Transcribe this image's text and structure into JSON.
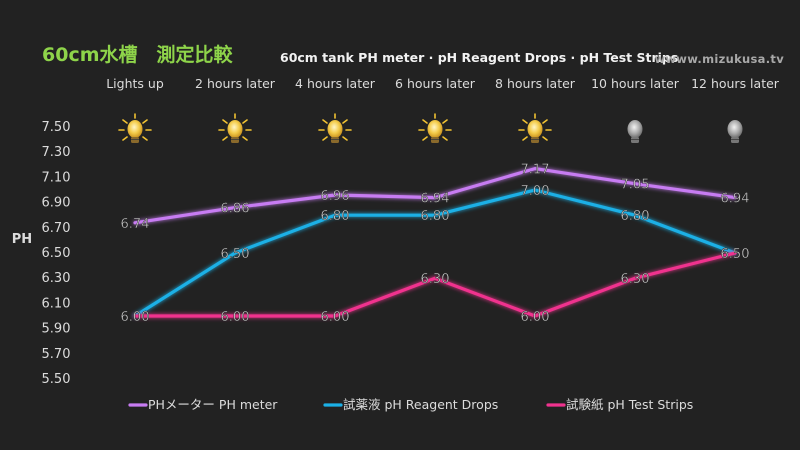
{
  "title": "60cm水槽　測定比較",
  "subtitle": "60cm tank PH meter · pH Reagent Drops · pH Test Strips",
  "website": "wwww.mizukusa.tv",
  "chart_data": {
    "type": "line",
    "categories": [
      "Lights up",
      "2 hours later",
      "4 hours later",
      "6 hours later",
      "8 hours later",
      "10 hours later",
      "12 hours later"
    ],
    "lights": [
      "on",
      "on",
      "on",
      "on",
      "on",
      "off",
      "off"
    ],
    "ylabel": "PH",
    "ylim": [
      5.5,
      7.5
    ],
    "yticks": [
      "7.50",
      "7.30",
      "7.10",
      "6.90",
      "6.70",
      "6.50",
      "6.30",
      "6.10",
      "5.90",
      "5.70",
      "5.50"
    ],
    "series": [
      {
        "name": "PHメーター PH meter",
        "color": "#c77cf2",
        "values": [
          6.74,
          6.86,
          6.96,
          6.94,
          7.17,
          7.05,
          6.94
        ],
        "labels": [
          "6.74",
          "6.86",
          "6.96",
          "6.94",
          "7.17",
          "7.05",
          "6.94"
        ]
      },
      {
        "name": "試薬液 pH Reagent Drops",
        "color": "#1bb0e6",
        "values": [
          6.0,
          6.5,
          6.8,
          6.8,
          7.0,
          6.8,
          6.5
        ],
        "labels": [
          "6.00",
          "6.50",
          "6.80",
          "6.80",
          "7.00",
          "6.80",
          "6.50"
        ]
      },
      {
        "name": "試験紙 pH Test Strips",
        "color": "#f0338e",
        "values": [
          6.0,
          6.0,
          6.0,
          6.3,
          6.0,
          6.3,
          6.5
        ],
        "labels": [
          "6.00",
          "6.00",
          "6.00",
          "6.30",
          "6.00",
          "6.30",
          "6.50"
        ]
      }
    ]
  }
}
